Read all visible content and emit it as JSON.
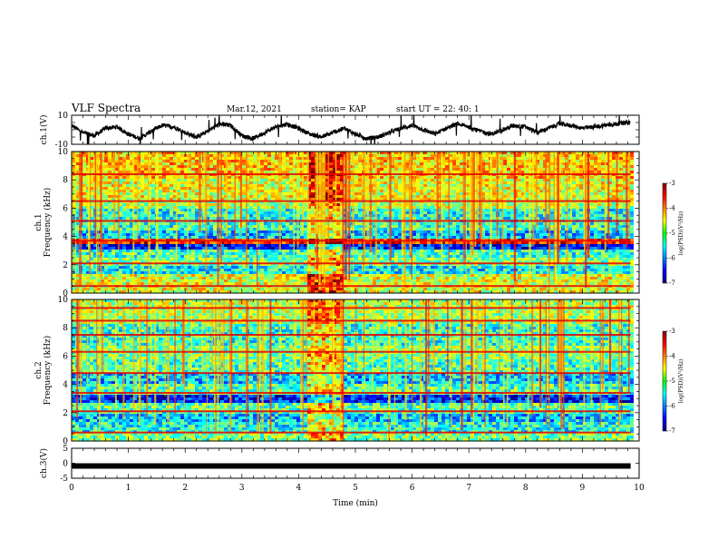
{
  "header": {
    "title": "VLF Spectra",
    "date": "Mar.12, 2021",
    "station": "station= KAP",
    "start": "start  UT  =   22: 40: 1"
  },
  "chart_data": [
    {
      "type": "line",
      "panel": "waveform-ch1",
      "ylabel": "ch.1(V)",
      "ylim": [
        -10,
        10
      ],
      "yticks": [
        "10",
        "-10"
      ],
      "xlim": [
        0,
        10
      ],
      "data_extent_min": 9.85,
      "series": [
        {
          "x": [
            0,
            0.2,
            0.4,
            0.6,
            0.8,
            1.0,
            1.2,
            1.4,
            1.6,
            1.8,
            2.0,
            2.2,
            2.4,
            2.6,
            2.8,
            3.0,
            3.2,
            3.4,
            3.6,
            3.8,
            4.0,
            4.2,
            4.4,
            4.6,
            4.8,
            5.0,
            5.2,
            5.4,
            5.6,
            5.8,
            6.0,
            6.2,
            6.4,
            6.6,
            6.8,
            7.0,
            7.2,
            7.4,
            7.6,
            7.8,
            8.0,
            8.2,
            8.4,
            8.6,
            8.8,
            9.0,
            9.2,
            9.4,
            9.6,
            9.8
          ],
          "values": [
            3,
            -2,
            -4,
            1,
            2,
            -3,
            -6,
            -1,
            3,
            2,
            -2,
            -5,
            -1,
            4,
            3,
            -4,
            -6,
            -2,
            2,
            4,
            1,
            -3,
            -5,
            -2,
            1,
            -3,
            -6,
            -5,
            -2,
            1,
            3,
            0,
            -3,
            1,
            4,
            2,
            -1,
            -3,
            0,
            3,
            2,
            -2,
            1,
            4,
            3,
            1,
            2,
            3,
            4,
            5
          ]
        }
      ]
    },
    {
      "type": "heatmap",
      "panel": "spectrogram-ch1",
      "ylabel": "ch.1\nFrequency (kHz)",
      "ylim": [
        0,
        10
      ],
      "xlim": [
        0,
        10
      ],
      "yticks": [
        "0",
        "2",
        "4",
        "6",
        "8",
        "10"
      ],
      "data_extent_min": 9.85,
      "burst_interval_min": [
        4.1,
        4.75
      ],
      "colorbar": {
        "label": "log(PSD)(V²/Hz)",
        "range": [
          -7,
          -3
        ],
        "ticks": [
          "-3",
          "-4",
          "-5",
          "-6",
          "-7"
        ]
      },
      "bands": [
        {
          "from": 0.0,
          "to": 0.6,
          "level": -4.6
        },
        {
          "from": 0.6,
          "to": 1.3,
          "level": -4.6
        },
        {
          "from": 1.3,
          "to": 1.9,
          "level": -5.5
        },
        {
          "from": 1.9,
          "to": 2.5,
          "level": -5.0
        },
        {
          "from": 2.5,
          "to": 3.0,
          "level": -5.3
        },
        {
          "from": 3.0,
          "to": 3.5,
          "level": -6.4
        },
        {
          "from": 3.5,
          "to": 3.9,
          "level": -3.6
        },
        {
          "from": 3.9,
          "to": 4.4,
          "level": -5.7
        },
        {
          "from": 4.4,
          "to": 5.0,
          "level": -5.3
        },
        {
          "from": 5.0,
          "to": 5.9,
          "level": -5.4
        },
        {
          "from": 5.9,
          "to": 6.6,
          "level": -4.8
        },
        {
          "from": 6.6,
          "to": 8.0,
          "level": -4.6
        },
        {
          "from": 8.0,
          "to": 10.0,
          "level": -4.3
        }
      ],
      "lines_khz": [
        0.5,
        2.1,
        3.7,
        5.1,
        6.5,
        8.4
      ]
    },
    {
      "type": "heatmap",
      "panel": "spectrogram-ch2",
      "ylabel": "ch.2\nFrequency (kHz)",
      "ylim": [
        0,
        10
      ],
      "xlim": [
        0,
        10
      ],
      "yticks": [
        "0",
        "2",
        "4",
        "6",
        "8",
        "10"
      ],
      "data_extent_min": 9.85,
      "burst_interval_min": [
        4.1,
        4.75
      ],
      "colorbar": {
        "label": "log(PSD)(V²/Hz)",
        "range": [
          -7,
          -3
        ],
        "ticks": [
          "-3",
          "-4",
          "-5",
          "-6",
          "-7"
        ]
      },
      "bands": [
        {
          "from": 0.0,
          "to": 0.5,
          "level": -5.0
        },
        {
          "from": 0.5,
          "to": 1.3,
          "level": -5.4
        },
        {
          "from": 1.3,
          "to": 2.0,
          "level": -5.7
        },
        {
          "from": 2.0,
          "to": 2.7,
          "level": -5.2
        },
        {
          "from": 2.7,
          "to": 3.3,
          "level": -6.4
        },
        {
          "from": 3.3,
          "to": 4.0,
          "level": -5.2
        },
        {
          "from": 4.0,
          "to": 4.8,
          "level": -5.7
        },
        {
          "from": 4.8,
          "to": 5.8,
          "level": -5.2
        },
        {
          "from": 5.8,
          "to": 6.7,
          "level": -5.0
        },
        {
          "from": 6.7,
          "to": 8.2,
          "level": -5.3
        },
        {
          "from": 8.2,
          "to": 10.0,
          "level": -4.8
        }
      ],
      "lines_khz": [
        0.6,
        2.1,
        3.4,
        4.8,
        6.3,
        7.5,
        8.5,
        9.4
      ]
    },
    {
      "type": "line",
      "panel": "waveform-ch3",
      "ylabel": "ch.3(V)",
      "ylim": [
        -5,
        5
      ],
      "yticks": [
        "5",
        "0",
        "-5"
      ],
      "xlim": [
        0,
        10
      ],
      "xlabel": "Time (min)",
      "xticks": [
        "0",
        "1",
        "2",
        "3",
        "4",
        "5",
        "6",
        "7",
        "8",
        "9",
        "10"
      ],
      "data_extent_min": 9.85,
      "series": [
        {
          "x": [
            0,
            9.85
          ],
          "values": [
            0,
            0
          ]
        }
      ]
    }
  ]
}
